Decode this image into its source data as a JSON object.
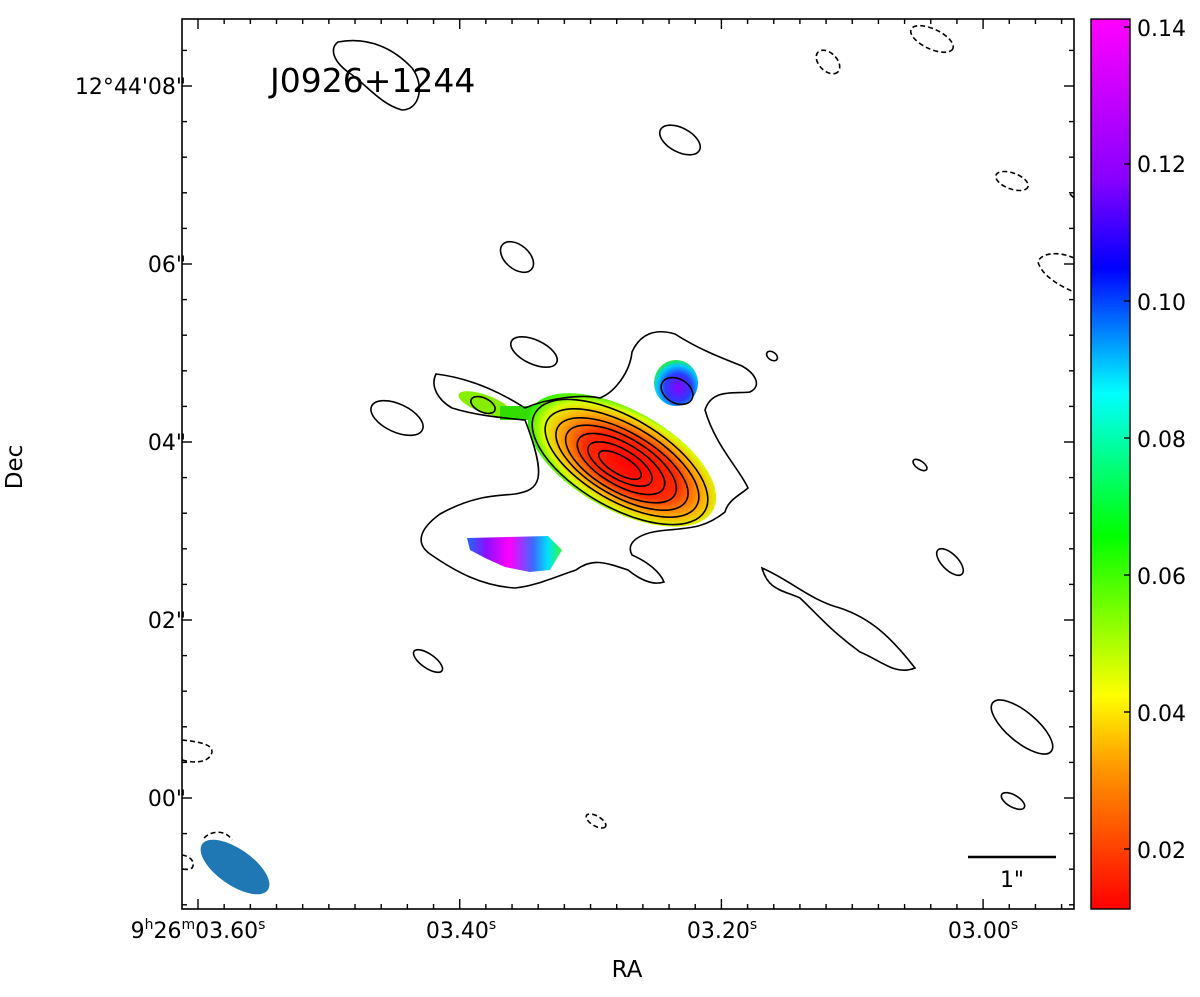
{
  "chart_data": {
    "type": "heatmap",
    "source_name": "J0926+1244",
    "xlabel": "RA",
    "ylabel": "Dec",
    "x_ticks": [
      {
        "h": "9",
        "m": "26",
        "s": "03.60",
        "full": true
      },
      {
        "s": "03.40"
      },
      {
        "s": "03.20"
      },
      {
        "s": "03.00"
      }
    ],
    "y_ticks": [
      "12°44'08\"",
      "06\"",
      "04\"",
      "02\"",
      "00\""
    ],
    "colorbar": {
      "ticks": [
        "0.14",
        "0.12",
        "0.10",
        "0.08",
        "0.06",
        "0.04",
        "0.02"
      ],
      "range": [
        0.01,
        0.141
      ],
      "colormap": [
        "#ff0000",
        "#ff9900",
        "#ffff00",
        "#00ff00",
        "#00ffff",
        "#0000ff",
        "#8800ff",
        "#ff00ff"
      ]
    },
    "scale_bar": "1\"",
    "beam_color": "#1f77b4",
    "contour_color": "#000000",
    "features": [
      {
        "name": "core",
        "value_center": 0.012,
        "value_edge": 0.05
      },
      {
        "name": "south-west knot",
        "value_center": 0.14,
        "value_edge": 0.09
      },
      {
        "name": "north knot",
        "value_center": 0.12,
        "value_edge": 0.06
      },
      {
        "name": "west arm",
        "value": 0.055
      }
    ]
  }
}
